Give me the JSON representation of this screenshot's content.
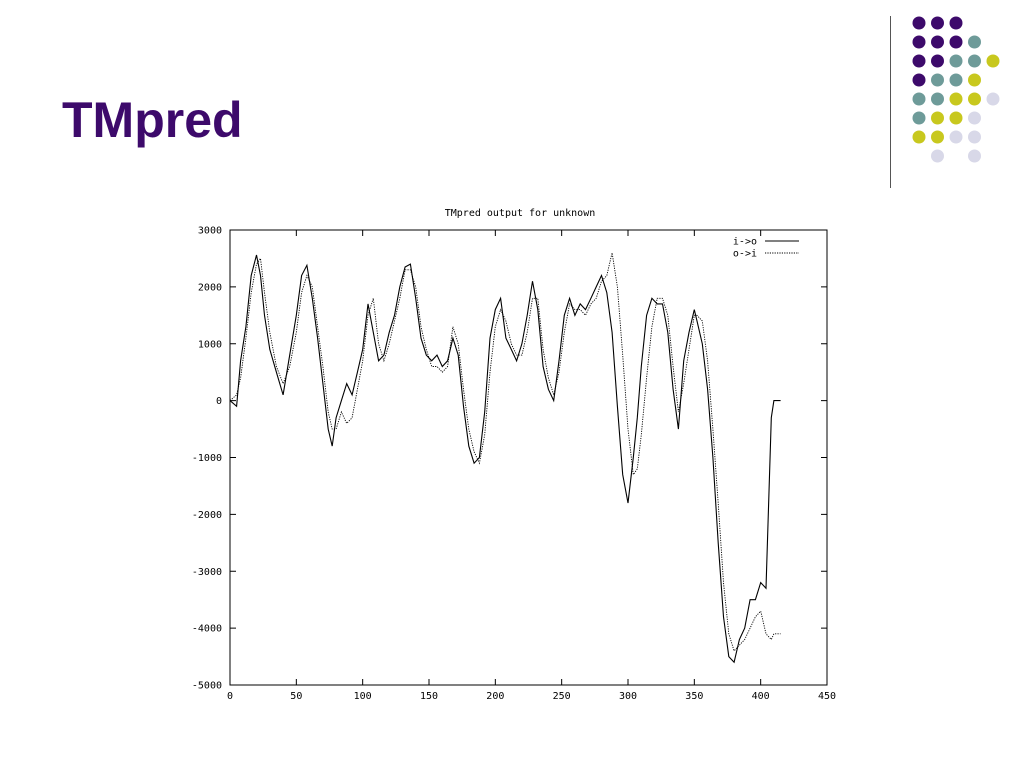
{
  "slide": {
    "title": "TMpred",
    "colors": {
      "title": "#3d0a6b",
      "dark_purple": "#3d0a6b",
      "teal": "#6e9b99",
      "yellow": "#c8c81e",
      "lavender": "#d8d8e8"
    },
    "decoration_dots": [
      [
        "dark_purple",
        "dark_purple",
        "dark_purple",
        "",
        "",
        ""
      ],
      [
        "dark_purple",
        "dark_purple",
        "dark_purple",
        "teal",
        "",
        ""
      ],
      [
        "dark_purple",
        "dark_purple",
        "teal",
        "teal",
        "yellow",
        ""
      ],
      [
        "dark_purple",
        "teal",
        "teal",
        "yellow",
        "",
        ""
      ],
      [
        "teal",
        "teal",
        "yellow",
        "yellow",
        "lavender",
        ""
      ],
      [
        "teal",
        "yellow",
        "yellow",
        "lavender",
        "",
        ""
      ],
      [
        "yellow",
        "yellow",
        "lavender",
        "lavender",
        "",
        ""
      ],
      [
        "",
        "lavender",
        "",
        "lavender",
        "",
        ""
      ]
    ]
  },
  "chart_data": {
    "type": "line",
    "title": "TMpred output for unknown",
    "xlabel": "",
    "ylabel": "",
    "xlim": [
      0,
      450
    ],
    "ylim": [
      -5000,
      3000
    ],
    "x_ticks": [
      "0",
      "50",
      "100",
      "150",
      "200",
      "250",
      "300",
      "350",
      "400",
      "450"
    ],
    "y_ticks": [
      "3000",
      "2000",
      "1000",
      "0",
      "-1000",
      "-2000",
      "-3000",
      "-4000",
      "-5000"
    ],
    "grid": false,
    "legend_position": "top-right",
    "series": [
      {
        "name": "i->o",
        "style": "solid",
        "x": [
          0,
          5,
          8,
          12,
          16,
          20,
          23,
          26,
          30,
          35,
          40,
          45,
          50,
          54,
          58,
          62,
          66,
          70,
          74,
          77,
          80,
          84,
          88,
          92,
          96,
          100,
          104,
          108,
          112,
          116,
          120,
          124,
          128,
          132,
          136,
          140,
          144,
          148,
          152,
          156,
          160,
          164,
          168,
          172,
          176,
          180,
          184,
          188,
          192,
          196,
          200,
          204,
          208,
          212,
          216,
          220,
          224,
          228,
          232,
          236,
          240,
          244,
          248,
          252,
          256,
          260,
          264,
          268,
          272,
          276,
          280,
          284,
          288,
          292,
          296,
          300,
          304,
          307,
          310,
          314,
          318,
          322,
          326,
          330,
          334,
          338,
          342,
          346,
          350,
          352,
          356,
          360,
          364,
          368,
          372,
          376,
          380,
          384,
          388,
          392,
          396,
          400,
          404,
          408,
          410,
          415
        ],
        "values": [
          0,
          -100,
          700,
          1300,
          2200,
          2560,
          2200,
          1500,
          900,
          500,
          100,
          800,
          1500,
          2200,
          2380,
          1800,
          1100,
          300,
          -500,
          -800,
          -300,
          0,
          300,
          100,
          500,
          900,
          1700,
          1200,
          700,
          800,
          1200,
          1500,
          2000,
          2350,
          2400,
          1800,
          1100,
          800,
          700,
          800,
          600,
          700,
          1100,
          800,
          -100,
          -800,
          -1100,
          -1000,
          -200,
          1100,
          1600,
          1800,
          1100,
          900,
          700,
          1000,
          1500,
          2100,
          1600,
          600,
          200,
          0,
          700,
          1500,
          1800,
          1500,
          1700,
          1600,
          1800,
          2000,
          2200,
          1900,
          1200,
          -100,
          -1300,
          -1800,
          -1000,
          -300,
          600,
          1500,
          1800,
          1700,
          1700,
          1200,
          200,
          -500,
          700,
          1200,
          1600,
          1400,
          1000,
          200,
          -1000,
          -2500,
          -3800,
          -4500,
          -4600,
          -4200,
          -4000,
          -3500,
          -3500,
          -3200,
          -3300,
          -300,
          0,
          0
        ]
      },
      {
        "name": "o->i",
        "style": "dotted",
        "x": [
          0,
          5,
          8,
          12,
          16,
          20,
          23,
          26,
          30,
          35,
          40,
          45,
          50,
          54,
          58,
          62,
          66,
          70,
          74,
          77,
          80,
          84,
          88,
          92,
          96,
          100,
          104,
          108,
          112,
          116,
          120,
          124,
          128,
          132,
          136,
          140,
          144,
          148,
          152,
          156,
          160,
          164,
          168,
          172,
          176,
          180,
          184,
          188,
          192,
          196,
          200,
          204,
          208,
          212,
          216,
          220,
          224,
          228,
          232,
          236,
          240,
          244,
          248,
          252,
          256,
          260,
          264,
          268,
          272,
          276,
          280,
          284,
          288,
          292,
          296,
          300,
          304,
          307,
          310,
          314,
          318,
          322,
          326,
          330,
          334,
          338,
          342,
          346,
          350,
          352,
          356,
          360,
          364,
          368,
          372,
          376,
          380,
          384,
          388,
          392,
          396,
          400,
          404,
          408,
          410,
          415
        ],
        "values": [
          0,
          100,
          400,
          1100,
          1900,
          2400,
          2500,
          1900,
          1200,
          600,
          300,
          600,
          1200,
          1900,
          2200,
          2000,
          1300,
          600,
          -200,
          -500,
          -500,
          -200,
          -400,
          -300,
          200,
          700,
          1500,
          1800,
          1000,
          700,
          1000,
          1400,
          1800,
          2300,
          2300,
          2000,
          1300,
          900,
          600,
          600,
          500,
          600,
          1300,
          1000,
          200,
          -500,
          -900,
          -1100,
          -600,
          500,
          1300,
          1600,
          1400,
          1000,
          800,
          800,
          1200,
          1800,
          1800,
          900,
          400,
          100,
          500,
          1200,
          1700,
          1600,
          1600,
          1500,
          1700,
          1800,
          2100,
          2200,
          2600,
          2000,
          800,
          -500,
          -1300,
          -1200,
          -600,
          400,
          1300,
          1800,
          1800,
          1500,
          600,
          -200,
          300,
          900,
          1500,
          1500,
          1400,
          700,
          -500,
          -1800,
          -3200,
          -4100,
          -4400,
          -4300,
          -4200,
          -4000,
          -3800,
          -3700,
          -4100,
          -4200,
          -4100,
          -4100
        ]
      }
    ]
  }
}
